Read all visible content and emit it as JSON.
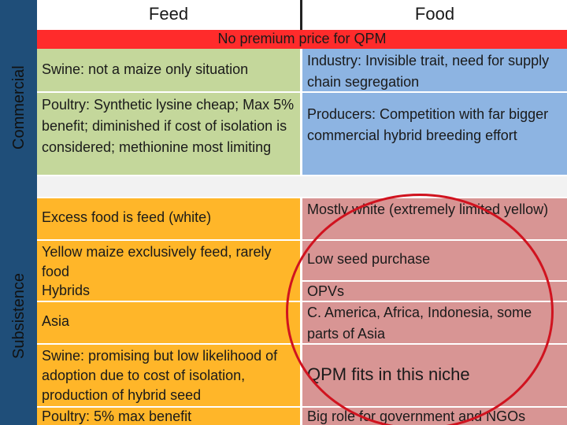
{
  "header": {
    "feed": "Feed",
    "food": "Food"
  },
  "side_labels": {
    "commercial": "Commercial",
    "subsistence": "Subsistence"
  },
  "banner": "No premium price for QPM",
  "commercial": {
    "feed": [
      "Swine: not a maize only situation",
      "Poultry: Synthetic lysine cheap; Max 5% benefit; diminished if cost of isolation is considered; methionine most limiting"
    ],
    "food": [
      "Industry: Invisible trait, need for supply chain segregation",
      "Producers: Competition with far bigger commercial hybrid breeding effort"
    ]
  },
  "subsistence": {
    "feed": [
      "Excess food is feed (white)",
      "Yellow maize exclusively feed, rarely food",
      "Hybrids",
      "Asia",
      "Swine: promising but low likelihood of adoption due to cost of isolation, production of hybrid seed",
      "Poultry: 5% max benefit"
    ],
    "food": [
      "Mostly white (extremely limited yellow)",
      "Low seed purchase",
      "OPVs",
      "C. America, Africa, Indonesia, some parts of Asia",
      "QPM fits in this niche",
      "Big role for government and NGOs"
    ]
  },
  "colors": {
    "band": "#1f4e79",
    "banner": "#ff2b2b",
    "commercial_feed": "#c4d79b",
    "commercial_food": "#8db4e2",
    "subsistence_feed": "#ffb629",
    "subsistence_food": "#d89594",
    "circle": "#d0131f"
  }
}
